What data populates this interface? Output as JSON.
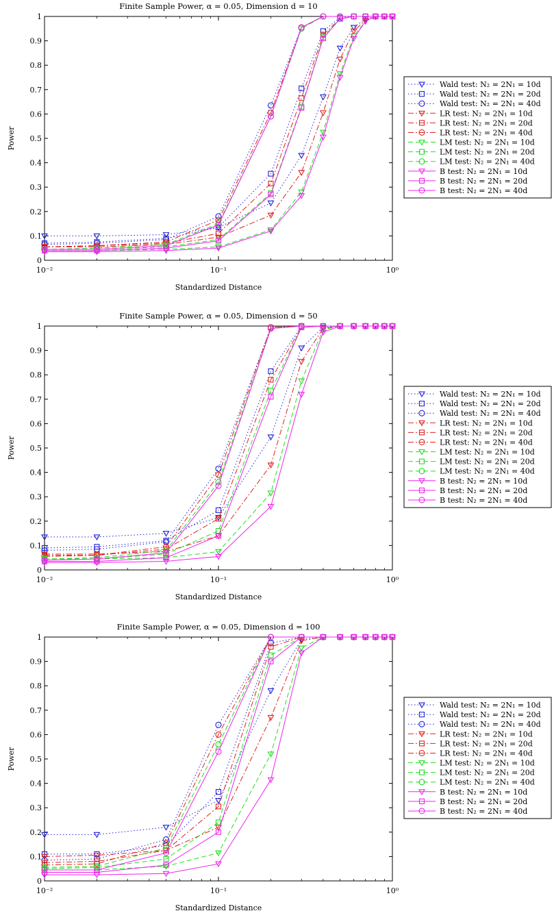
{
  "chart_data": [
    {
      "type": "line",
      "title": "Finite Sample Power, α = 0.05, Dimension d = 10",
      "xlabel": "Standardized Distance",
      "ylabel": "Power",
      "xscale": "log",
      "xlim": [
        0.01,
        1
      ],
      "ylim": [
        0,
        1
      ],
      "xticks": [
        "10⁻²",
        "10⁻¹",
        "10⁰"
      ],
      "yticks": [
        "0",
        "0.1",
        "0.2",
        "0.3",
        "0.4",
        "0.5",
        "0.6",
        "0.7",
        "0.8",
        "0.9",
        "1"
      ],
      "legend_position": "right",
      "x": [
        0.01,
        0.02,
        0.05,
        0.1,
        0.2,
        0.3,
        0.4,
        0.5,
        0.6,
        0.7,
        0.8,
        0.9,
        1.0
      ],
      "series": [
        {
          "name": "Wald test: N₂ = 2N₁ = 10d",
          "values": [
            0.1,
            0.1,
            0.105,
            0.135,
            0.235,
            0.43,
            0.67,
            0.87,
            0.955,
            0.99,
            1.0,
            1.0,
            1.0
          ]
        },
        {
          "name": "Wald test: N₂ = 2N₁ = 20d",
          "values": [
            0.07,
            0.075,
            0.09,
            0.135,
            0.355,
            0.705,
            0.94,
            0.995,
            1.0,
            1.0,
            1.0,
            1.0,
            1.0
          ]
        },
        {
          "name": "Wald test: N₂ = 2N₁ = 40d",
          "values": [
            0.065,
            0.07,
            0.085,
            0.18,
            0.635,
            0.955,
            1.0,
            1.0,
            1.0,
            1.0,
            1.0,
            1.0,
            1.0
          ]
        },
        {
          "name": "LR test: N₂ = 2N₁ = 10d",
          "values": [
            0.055,
            0.055,
            0.065,
            0.095,
            0.185,
            0.36,
            0.605,
            0.825,
            0.94,
            0.985,
            1.0,
            1.0,
            1.0
          ]
        },
        {
          "name": "LR test: N₂ = 2N₁ = 20d",
          "values": [
            0.055,
            0.06,
            0.07,
            0.11,
            0.315,
            0.665,
            0.925,
            0.99,
            1.0,
            1.0,
            1.0,
            1.0,
            1.0
          ]
        },
        {
          "name": "LR test: N₂ = 2N₁ = 40d",
          "values": [
            0.055,
            0.06,
            0.075,
            0.165,
            0.605,
            0.955,
            1.0,
            1.0,
            1.0,
            1.0,
            1.0,
            1.0,
            1.0
          ]
        },
        {
          "name": "LM test: N₂ = 2N₁ = 10d",
          "values": [
            0.04,
            0.04,
            0.045,
            0.055,
            0.125,
            0.28,
            0.525,
            0.765,
            0.92,
            0.98,
            1.0,
            1.0,
            1.0
          ]
        },
        {
          "name": "LM test: N₂ = 2N₁ = 20d",
          "values": [
            0.045,
            0.045,
            0.055,
            0.085,
            0.275,
            0.63,
            0.915,
            0.99,
            1.0,
            1.0,
            1.0,
            1.0,
            1.0
          ]
        },
        {
          "name": "LM test: N₂ = 2N₁ = 40d",
          "values": [
            0.045,
            0.05,
            0.065,
            0.15,
            0.59,
            0.95,
            1.0,
            1.0,
            1.0,
            1.0,
            1.0,
            1.0,
            1.0
          ]
        },
        {
          "name": "B test: N₂ = 2N₁ = 10d",
          "values": [
            0.035,
            0.035,
            0.04,
            0.05,
            0.12,
            0.265,
            0.505,
            0.75,
            0.91,
            0.98,
            1.0,
            1.0,
            1.0
          ]
        },
        {
          "name": "B test: N₂ = 2N₁ = 20d",
          "values": [
            0.04,
            0.04,
            0.05,
            0.08,
            0.27,
            0.625,
            0.91,
            0.99,
            1.0,
            1.0,
            1.0,
            1.0,
            1.0
          ]
        },
        {
          "name": "B test: N₂ = 2N₁ = 40d",
          "values": [
            0.045,
            0.045,
            0.06,
            0.145,
            0.59,
            0.955,
            1.0,
            1.0,
            1.0,
            1.0,
            1.0,
            1.0,
            1.0
          ]
        }
      ]
    },
    {
      "type": "line",
      "title": "Finite Sample Power, α = 0.05, Dimension d = 50",
      "xlabel": "Standardized Distance",
      "ylabel": "Power",
      "xscale": "log",
      "xlim": [
        0.01,
        1
      ],
      "ylim": [
        0,
        1
      ],
      "xticks": [
        "10⁻²",
        "10⁻¹",
        "10⁰"
      ],
      "yticks": [
        "0",
        "0.1",
        "0.2",
        "0.3",
        "0.4",
        "0.5",
        "0.6",
        "0.7",
        "0.8",
        "0.9",
        "1"
      ],
      "legend_position": "right",
      "x": [
        0.01,
        0.02,
        0.05,
        0.1,
        0.2,
        0.3,
        0.4,
        0.5,
        0.6,
        0.7,
        0.8,
        0.9,
        1.0
      ],
      "series": [
        {
          "name": "Wald test: N₂ = 2N₁ = 10d",
          "values": [
            0.135,
            0.135,
            0.15,
            0.215,
            0.545,
            0.91,
            0.995,
            1.0,
            1.0,
            1.0,
            1.0,
            1.0,
            1.0
          ]
        },
        {
          "name": "Wald test: N₂ = 2N₁ = 20d",
          "values": [
            0.09,
            0.095,
            0.12,
            0.245,
            0.815,
            1.0,
            1.0,
            1.0,
            1.0,
            1.0,
            1.0,
            1.0,
            1.0
          ]
        },
        {
          "name": "Wald test: N₂ = 2N₁ = 40d",
          "values": [
            0.08,
            0.085,
            0.115,
            0.415,
            0.995,
            1.0,
            1.0,
            1.0,
            1.0,
            1.0,
            1.0,
            1.0,
            1.0
          ]
        },
        {
          "name": "LR test: N₂ = 2N₁ = 10d",
          "values": [
            0.065,
            0.065,
            0.075,
            0.14,
            0.43,
            0.855,
            0.99,
            1.0,
            1.0,
            1.0,
            1.0,
            1.0,
            1.0
          ]
        },
        {
          "name": "LR test: N₂ = 2N₁ = 20d",
          "values": [
            0.06,
            0.06,
            0.085,
            0.21,
            0.78,
            0.995,
            1.0,
            1.0,
            1.0,
            1.0,
            1.0,
            1.0,
            1.0
          ]
        },
        {
          "name": "LR test: N₂ = 2N₁ = 40d",
          "values": [
            0.055,
            0.06,
            0.095,
            0.39,
            0.995,
            1.0,
            1.0,
            1.0,
            1.0,
            1.0,
            1.0,
            1.0,
            1.0
          ]
        },
        {
          "name": "LM test: N₂ = 2N₁ = 10d",
          "values": [
            0.045,
            0.045,
            0.05,
            0.075,
            0.315,
            0.775,
            0.985,
            1.0,
            1.0,
            1.0,
            1.0,
            1.0,
            1.0
          ]
        },
        {
          "name": "LM test: N₂ = 2N₁ = 20d",
          "values": [
            0.045,
            0.045,
            0.065,
            0.16,
            0.735,
            0.995,
            1.0,
            1.0,
            1.0,
            1.0,
            1.0,
            1.0,
            1.0
          ]
        },
        {
          "name": "LM test: N₂ = 2N₁ = 40d",
          "values": [
            0.045,
            0.05,
            0.08,
            0.36,
            0.99,
            1.0,
            1.0,
            1.0,
            1.0,
            1.0,
            1.0,
            1.0,
            1.0
          ]
        },
        {
          "name": "B test: N₂ = 2N₁ = 10d",
          "values": [
            0.03,
            0.03,
            0.035,
            0.055,
            0.26,
            0.72,
            0.975,
            1.0,
            1.0,
            1.0,
            1.0,
            1.0,
            1.0
          ]
        },
        {
          "name": "B test: N₂ = 2N₁ = 20d",
          "values": [
            0.035,
            0.035,
            0.05,
            0.14,
            0.71,
            0.995,
            1.0,
            1.0,
            1.0,
            1.0,
            1.0,
            1.0,
            1.0
          ]
        },
        {
          "name": "B test: N₂ = 2N₁ = 40d",
          "values": [
            0.04,
            0.045,
            0.07,
            0.345,
            0.99,
            1.0,
            1.0,
            1.0,
            1.0,
            1.0,
            1.0,
            1.0,
            1.0
          ]
        }
      ]
    },
    {
      "type": "line",
      "title": "Finite Sample Power, α = 0.05, Dimension d = 100",
      "xlabel": "Standardized Distance",
      "ylabel": "Power",
      "xscale": "log",
      "xlim": [
        0.01,
        1
      ],
      "ylim": [
        0,
        1
      ],
      "xticks": [
        "10⁻²",
        "10⁻¹",
        "10⁰"
      ],
      "yticks": [
        "0",
        "0.1",
        "0.2",
        "0.3",
        "0.4",
        "0.5",
        "0.6",
        "0.7",
        "0.8",
        "0.9",
        "1"
      ],
      "legend_position": "right",
      "x": [
        0.01,
        0.02,
        0.05,
        0.1,
        0.2,
        0.3,
        0.4,
        0.5,
        0.6,
        0.7,
        0.8,
        0.9,
        1.0
      ],
      "series": [
        {
          "name": "Wald test: N₂ = 2N₁ = 10d",
          "values": [
            0.19,
            0.19,
            0.22,
            0.33,
            0.78,
            0.99,
            1.0,
            1.0,
            1.0,
            1.0,
            1.0,
            1.0,
            1.0
          ]
        },
        {
          "name": "Wald test: N₂ = 2N₁ = 20d",
          "values": [
            0.11,
            0.11,
            0.145,
            0.365,
            0.975,
            1.0,
            1.0,
            1.0,
            1.0,
            1.0,
            1.0,
            1.0,
            1.0
          ]
        },
        {
          "name": "Wald test: N₂ = 2N₁ = 40d",
          "values": [
            0.085,
            0.09,
            0.17,
            0.64,
            1.0,
            1.0,
            1.0,
            1.0,
            1.0,
            1.0,
            1.0,
            1.0,
            1.0
          ]
        },
        {
          "name": "LR test: N₂ = 2N₁ = 10d",
          "values": [
            0.1,
            0.105,
            0.125,
            0.22,
            0.67,
            0.985,
            1.0,
            1.0,
            1.0,
            1.0,
            1.0,
            1.0,
            1.0
          ]
        },
        {
          "name": "LR test: N₂ = 2N₁ = 20d",
          "values": [
            0.075,
            0.08,
            0.125,
            0.305,
            0.96,
            1.0,
            1.0,
            1.0,
            1.0,
            1.0,
            1.0,
            1.0,
            1.0
          ]
        },
        {
          "name": "LR test: N₂ = 2N₁ = 40d",
          "values": [
            0.065,
            0.07,
            0.155,
            0.6,
            1.0,
            1.0,
            1.0,
            1.0,
            1.0,
            1.0,
            1.0,
            1.0,
            1.0
          ]
        },
        {
          "name": "LM test: N₂ = 2N₁ = 10d",
          "values": [
            0.045,
            0.045,
            0.06,
            0.115,
            0.52,
            0.955,
            1.0,
            1.0,
            1.0,
            1.0,
            1.0,
            1.0,
            1.0
          ]
        },
        {
          "name": "LM test: N₂ = 2N₁ = 20d",
          "values": [
            0.05,
            0.055,
            0.09,
            0.24,
            0.925,
            1.0,
            1.0,
            1.0,
            1.0,
            1.0,
            1.0,
            1.0,
            1.0
          ]
        },
        {
          "name": "LM test: N₂ = 2N₁ = 40d",
          "values": [
            0.055,
            0.06,
            0.135,
            0.56,
            1.0,
            1.0,
            1.0,
            1.0,
            1.0,
            1.0,
            1.0,
            1.0,
            1.0
          ]
        },
        {
          "name": "B test: N₂ = 2N₁ = 10d",
          "values": [
            0.025,
            0.025,
            0.03,
            0.07,
            0.415,
            0.935,
            1.0,
            1.0,
            1.0,
            1.0,
            1.0,
            1.0,
            1.0
          ]
        },
        {
          "name": "B test: N₂ = 2N₁ = 20d",
          "values": [
            0.035,
            0.035,
            0.065,
            0.2,
            0.9,
            1.0,
            1.0,
            1.0,
            1.0,
            1.0,
            1.0,
            1.0,
            1.0
          ]
        },
        {
          "name": "B test: N₂ = 2N₁ = 40d",
          "values": [
            0.045,
            0.045,
            0.115,
            0.53,
            1.0,
            1.0,
            1.0,
            1.0,
            1.0,
            1.0,
            1.0,
            1.0,
            1.0
          ]
        }
      ]
    }
  ],
  "styles": {
    "colors": {
      "Wald": "#1f1fd6",
      "LR": "#e02020",
      "LM": "#22dd22",
      "B": "#ee22ee"
    },
    "dashes": {
      "Wald": "1.5 3",
      "LR": "8 3 2 3",
      "LM": "7 4",
      "B": ""
    },
    "markers": [
      "triangle-down",
      "square",
      "circle"
    ]
  }
}
